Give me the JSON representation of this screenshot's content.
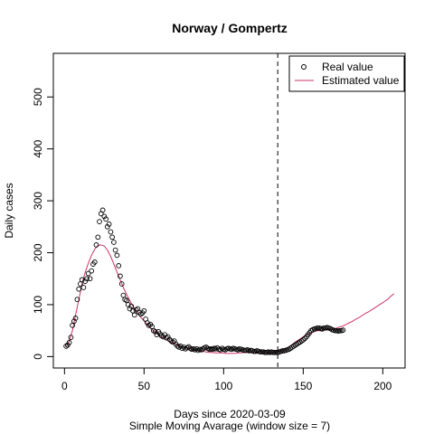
{
  "chart_data": {
    "type": "scatter",
    "title": "Norway / Gompertz",
    "xlabel": "Days since 2020-03-09",
    "subtitle": "Simple Moving Avarage (window size = 7)",
    "ylabel": "Daily cases",
    "xlim": [
      -7,
      214
    ],
    "ylim": [
      -22,
      584
    ],
    "x_ticks": [
      0,
      50,
      100,
      150,
      200
    ],
    "y_ticks": [
      0,
      100,
      200,
      300,
      400,
      500
    ],
    "vline_x": 134,
    "legend": {
      "position": "top-right",
      "entries": [
        {
          "label": "Real value",
          "style": "open-circle",
          "color": "#000000"
        },
        {
          "label": "Estimated value",
          "style": "line",
          "color": "#cc3366"
        }
      ]
    },
    "series": [
      {
        "name": "Real value",
        "color": "#000000",
        "points": [
          [
            1,
            20
          ],
          [
            2,
            22
          ],
          [
            3,
            27
          ],
          [
            4,
            37
          ],
          [
            5,
            60
          ],
          [
            6,
            68
          ],
          [
            7,
            74
          ],
          [
            8,
            110
          ],
          [
            9,
            130
          ],
          [
            10,
            140
          ],
          [
            11,
            148
          ],
          [
            12,
            133
          ],
          [
            13,
            145
          ],
          [
            14,
            150
          ],
          [
            15,
            160
          ],
          [
            16,
            150
          ],
          [
            17,
            165
          ],
          [
            18,
            178
          ],
          [
            19,
            182
          ],
          [
            20,
            215
          ],
          [
            21,
            230
          ],
          [
            22,
            260
          ],
          [
            23,
            275
          ],
          [
            24,
            282
          ],
          [
            25,
            270
          ],
          [
            26,
            265
          ],
          [
            27,
            250
          ],
          [
            28,
            255
          ],
          [
            29,
            240
          ],
          [
            30,
            230
          ],
          [
            31,
            220
          ],
          [
            32,
            205
          ],
          [
            33,
            195
          ],
          [
            34,
            175
          ],
          [
            35,
            155
          ],
          [
            36,
            140
          ],
          [
            37,
            118
          ],
          [
            38,
            110
          ],
          [
            39,
            108
          ],
          [
            40,
            100
          ],
          [
            41,
            92
          ],
          [
            42,
            97
          ],
          [
            43,
            88
          ],
          [
            44,
            80
          ],
          [
            45,
            90
          ],
          [
            46,
            92
          ],
          [
            47,
            85
          ],
          [
            48,
            82
          ],
          [
            49,
            84
          ],
          [
            50,
            88
          ],
          [
            51,
            72
          ],
          [
            52,
            65
          ],
          [
            53,
            60
          ],
          [
            54,
            62
          ],
          [
            55,
            58
          ],
          [
            56,
            50
          ],
          [
            57,
            48
          ],
          [
            58,
            42
          ],
          [
            59,
            48
          ],
          [
            60,
            44
          ],
          [
            61,
            40
          ],
          [
            62,
            38
          ],
          [
            63,
            42
          ],
          [
            64,
            36
          ],
          [
            65,
            38
          ],
          [
            66,
            33
          ],
          [
            67,
            30
          ],
          [
            68,
            28
          ],
          [
            69,
            30
          ],
          [
            70,
            24
          ],
          [
            71,
            20
          ],
          [
            72,
            18
          ],
          [
            73,
            20
          ],
          [
            74,
            16
          ],
          [
            75,
            18
          ],
          [
            76,
            15
          ],
          [
            77,
            17
          ],
          [
            78,
            19
          ],
          [
            79,
            16
          ],
          [
            80,
            14
          ],
          [
            81,
            15
          ],
          [
            82,
            13
          ],
          [
            83,
            15
          ],
          [
            84,
            12
          ],
          [
            85,
            14
          ],
          [
            86,
            13
          ],
          [
            87,
            15
          ],
          [
            88,
            17
          ],
          [
            89,
            18
          ],
          [
            90,
            16
          ],
          [
            91,
            14
          ],
          [
            92,
            15
          ],
          [
            93,
            14
          ],
          [
            94,
            16
          ],
          [
            95,
            15
          ],
          [
            96,
            17
          ],
          [
            97,
            14
          ],
          [
            98,
            13
          ],
          [
            99,
            16
          ],
          [
            100,
            14
          ],
          [
            101,
            13
          ],
          [
            102,
            15
          ],
          [
            103,
            16
          ],
          [
            104,
            15
          ],
          [
            105,
            14
          ],
          [
            106,
            16
          ],
          [
            107,
            15
          ],
          [
            108,
            14
          ],
          [
            109,
            13
          ],
          [
            110,
            15
          ],
          [
            111,
            14
          ],
          [
            112,
            13
          ],
          [
            113,
            12
          ],
          [
            114,
            12
          ],
          [
            115,
            13
          ],
          [
            116,
            11
          ],
          [
            117,
            12
          ],
          [
            118,
            11
          ],
          [
            119,
            10
          ],
          [
            120,
            10
          ],
          [
            121,
            11
          ],
          [
            122,
            10
          ],
          [
            123,
            9
          ],
          [
            124,
            9
          ],
          [
            125,
            9
          ],
          [
            126,
            8
          ],
          [
            127,
            8
          ],
          [
            128,
            9
          ],
          [
            129,
            8
          ],
          [
            130,
            9
          ],
          [
            131,
            8
          ],
          [
            132,
            8
          ],
          [
            133,
            8
          ],
          [
            134,
            8
          ],
          [
            135,
            9
          ],
          [
            136,
            10
          ],
          [
            137,
            11
          ],
          [
            138,
            11
          ],
          [
            139,
            12
          ],
          [
            140,
            13
          ],
          [
            141,
            14
          ],
          [
            142,
            16
          ],
          [
            143,
            18
          ],
          [
            144,
            20
          ],
          [
            145,
            22
          ],
          [
            146,
            24
          ],
          [
            147,
            26
          ],
          [
            148,
            28
          ],
          [
            149,
            30
          ],
          [
            150,
            32
          ],
          [
            151,
            35
          ],
          [
            152,
            38
          ],
          [
            153,
            42
          ],
          [
            154,
            46
          ],
          [
            155,
            50
          ],
          [
            156,
            52
          ],
          [
            157,
            53
          ],
          [
            158,
            54
          ],
          [
            159,
            55
          ],
          [
            160,
            55
          ],
          [
            161,
            54
          ],
          [
            162,
            53
          ],
          [
            163,
            55
          ],
          [
            164,
            55
          ],
          [
            165,
            56
          ],
          [
            166,
            55
          ],
          [
            167,
            54
          ],
          [
            168,
            52
          ],
          [
            169,
            51
          ],
          [
            170,
            50
          ],
          [
            171,
            50
          ],
          [
            172,
            49
          ],
          [
            173,
            50
          ],
          [
            174,
            50
          ],
          [
            175,
            51
          ]
        ]
      },
      {
        "name": "Estimated value",
        "color": "#cc3366",
        "points": [
          [
            1,
            18
          ],
          [
            3,
            30
          ],
          [
            5,
            50
          ],
          [
            7,
            80
          ],
          [
            9,
            110
          ],
          [
            11,
            140
          ],
          [
            13,
            162
          ],
          [
            15,
            180
          ],
          [
            17,
            195
          ],
          [
            19,
            207
          ],
          [
            21,
            214
          ],
          [
            23,
            215
          ],
          [
            25,
            213
          ],
          [
            27,
            205
          ],
          [
            29,
            193
          ],
          [
            31,
            178
          ],
          [
            33,
            163
          ],
          [
            35,
            148
          ],
          [
            37,
            133
          ],
          [
            39,
            120
          ],
          [
            41,
            108
          ],
          [
            43,
            97
          ],
          [
            45,
            88
          ],
          [
            47,
            79
          ],
          [
            49,
            72
          ],
          [
            51,
            65
          ],
          [
            53,
            58
          ],
          [
            55,
            52
          ],
          [
            57,
            47
          ],
          [
            59,
            42
          ],
          [
            61,
            38
          ],
          [
            63,
            34
          ],
          [
            65,
            31
          ],
          [
            67,
            28
          ],
          [
            69,
            25
          ],
          [
            71,
            22
          ],
          [
            73,
            20
          ],
          [
            75,
            18
          ],
          [
            77,
            16
          ],
          [
            79,
            15
          ],
          [
            81,
            13
          ],
          [
            83,
            12
          ],
          [
            85,
            11
          ],
          [
            87,
            10
          ],
          [
            89,
            9
          ],
          [
            91,
            8
          ],
          [
            93,
            8
          ],
          [
            95,
            7
          ],
          [
            97,
            7
          ],
          [
            99,
            7
          ],
          [
            101,
            6
          ],
          [
            103,
            6
          ],
          [
            105,
            6
          ],
          [
            107,
            6
          ],
          [
            109,
            7
          ],
          [
            111,
            7
          ],
          [
            113,
            8
          ],
          [
            115,
            8
          ],
          [
            117,
            9
          ],
          [
            119,
            9
          ],
          [
            121,
            9
          ],
          [
            123,
            9
          ],
          [
            125,
            8
          ],
          [
            127,
            8
          ],
          [
            129,
            8
          ],
          [
            131,
            8
          ],
          [
            133,
            9
          ],
          [
            135,
            10
          ],
          [
            137,
            12
          ],
          [
            139,
            15
          ],
          [
            141,
            19
          ],
          [
            143,
            23
          ],
          [
            145,
            28
          ],
          [
            147,
            32
          ],
          [
            149,
            36
          ],
          [
            151,
            40
          ],
          [
            153,
            43
          ],
          [
            155,
            46
          ],
          [
            157,
            48
          ],
          [
            159,
            50
          ],
          [
            161,
            50
          ],
          [
            163,
            51
          ],
          [
            165,
            52
          ],
          [
            167,
            52
          ],
          [
            169,
            53
          ],
          [
            171,
            55
          ],
          [
            173,
            57
          ],
          [
            175,
            59
          ],
          [
            177,
            62
          ],
          [
            179,
            65
          ],
          [
            181,
            68
          ],
          [
            183,
            72
          ],
          [
            185,
            75
          ],
          [
            187,
            79
          ],
          [
            189,
            83
          ],
          [
            191,
            86
          ],
          [
            193,
            90
          ],
          [
            195,
            94
          ],
          [
            197,
            98
          ],
          [
            199,
            102
          ],
          [
            201,
            106
          ],
          [
            203,
            110
          ],
          [
            205,
            116
          ],
          [
            207,
            121
          ]
        ]
      }
    ]
  }
}
